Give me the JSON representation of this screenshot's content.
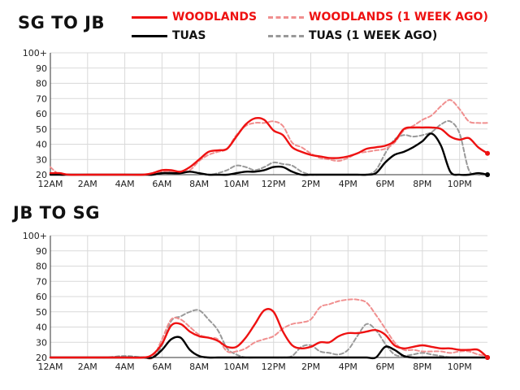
{
  "legend": {
    "woodlands": "WOODLANDS",
    "woodlands_ago": "WOODLANDS (1 WEEK AGO)",
    "tuas": "TUAS",
    "tuas_ago": "TUAS (1 WEEK AGO)"
  },
  "colors": {
    "woodlands": "#ee1111",
    "woodlands_ago": "#f08f8f",
    "tuas": "#000000",
    "tuas_ago": "#999999",
    "grid": "#d9d9d9"
  },
  "chart_data": [
    {
      "type": "line",
      "title": "SG TO JB",
      "x_ticks": [
        "12AM",
        "2AM",
        "4AM",
        "6AM",
        "8AM",
        "10AM",
        "12PM",
        "2PM",
        "4PM",
        "6PM",
        "8PM",
        "10PM"
      ],
      "y_ticks": [
        "20",
        "30",
        "40",
        "50",
        "60",
        "70",
        "80",
        "90",
        "100+"
      ],
      "ylim": [
        20,
        100
      ],
      "xlim": [
        0,
        23.5
      ],
      "grid": true,
      "series": [
        {
          "name": "WOODLANDS",
          "key": "woodlands",
          "dashed": false,
          "x": [
            0,
            0.5,
            1,
            2,
            3,
            4,
            5,
            5.5,
            6,
            6.5,
            7,
            7.5,
            8,
            8.5,
            9,
            9.5,
            10,
            10.5,
            11,
            11.5,
            12,
            12.5,
            13,
            13.5,
            14,
            14.5,
            15,
            15.5,
            16,
            16.5,
            17,
            17.5,
            18,
            18.5,
            19,
            19.5,
            20,
            20.5,
            21,
            21.5,
            22,
            22.5,
            23,
            23.5
          ],
          "y": [
            21,
            21,
            20,
            20,
            20,
            20,
            20,
            21,
            23,
            23,
            22,
            25,
            30,
            35,
            36,
            37,
            45,
            53,
            57,
            56,
            49,
            46,
            38,
            35,
            33,
            32,
            31,
            31,
            32,
            34,
            37,
            38,
            39,
            42,
            50,
            51,
            51,
            51,
            50,
            45,
            43,
            44,
            38,
            34
          ]
        },
        {
          "name": "WOODLANDS (1 WEEK AGO)",
          "key": "woodlands_ago",
          "dashed": true,
          "x": [
            0,
            0.5,
            1,
            2,
            3,
            4,
            5,
            5.5,
            6,
            6.5,
            7,
            7.5,
            8,
            8.5,
            9,
            9.5,
            10,
            10.5,
            11,
            11.5,
            12,
            12.5,
            13,
            13.5,
            14,
            14.5,
            15,
            15.5,
            16,
            16.5,
            17,
            17.5,
            18,
            18.5,
            19,
            19.5,
            20,
            20.5,
            21,
            21.5,
            22,
            22.5,
            23,
            23.5
          ],
          "y": [
            25,
            20,
            20,
            20,
            20,
            20,
            20,
            20,
            22,
            22,
            22,
            23,
            29,
            33,
            35,
            37,
            46,
            52,
            54,
            54,
            55,
            52,
            41,
            38,
            34,
            31,
            30,
            29,
            31,
            34,
            35,
            36,
            37,
            41,
            49,
            52,
            56,
            59,
            65,
            69,
            63,
            55,
            54,
            54
          ]
        },
        {
          "name": "TUAS",
          "key": "tuas",
          "dashed": false,
          "x": [
            0,
            0.5,
            1,
            2,
            3,
            4,
            5,
            5.5,
            6,
            6.5,
            7,
            7.5,
            8,
            8.5,
            9,
            9.5,
            10,
            10.5,
            11,
            11.5,
            12,
            12.5,
            13,
            13.5,
            14,
            14.5,
            15,
            15.5,
            16,
            16.5,
            17,
            17.5,
            18,
            18.5,
            19,
            19.5,
            20,
            20.5,
            21,
            21.5,
            22,
            22.5,
            23,
            23.5
          ],
          "y": [
            20,
            20,
            20,
            20,
            20,
            20,
            20,
            20,
            21,
            21,
            21,
            22,
            21,
            20,
            20,
            20,
            21,
            22,
            22,
            23,
            25,
            25,
            22,
            20,
            20,
            20,
            20,
            20,
            20,
            20,
            20,
            21,
            28,
            33,
            35,
            38,
            42,
            47,
            39,
            22,
            20,
            20,
            21,
            20
          ]
        },
        {
          "name": "TUAS (1 WEEK AGO)",
          "key": "tuas_ago",
          "dashed": true,
          "x": [
            0,
            0.5,
            1,
            2,
            3,
            4,
            5,
            5.5,
            6,
            6.5,
            7,
            7.5,
            8,
            8.5,
            9,
            9.5,
            10,
            10.5,
            11,
            11.5,
            12,
            12.5,
            13,
            13.5,
            14,
            14.5,
            15,
            15.5,
            16,
            16.5,
            17,
            17.5,
            18,
            18.5,
            19,
            19.5,
            20,
            20.5,
            21,
            21.5,
            22,
            22.5,
            23,
            23.5
          ],
          "y": [
            20,
            20,
            20,
            20,
            20,
            20,
            20,
            20,
            21,
            22,
            22,
            22,
            21,
            20,
            21,
            23,
            26,
            25,
            23,
            25,
            28,
            27,
            26,
            22,
            20,
            20,
            20,
            20,
            20,
            20,
            20,
            23,
            34,
            43,
            46,
            45,
            46,
            48,
            53,
            55,
            47,
            23,
            20,
            20
          ]
        }
      ]
    },
    {
      "type": "line",
      "title": "JB TO SG",
      "x_ticks": [
        "12AM",
        "2AM",
        "4AM",
        "6AM",
        "8AM",
        "10AM",
        "12PM",
        "2PM",
        "4PM",
        "6PM",
        "8PM",
        "10PM"
      ],
      "y_ticks": [
        "20",
        "30",
        "40",
        "50",
        "60",
        "70",
        "80",
        "90",
        "100+"
      ],
      "ylim": [
        20,
        100
      ],
      "xlim": [
        0,
        23.5
      ],
      "grid": true,
      "series": [
        {
          "name": "WOODLANDS",
          "key": "woodlands",
          "dashed": false,
          "x": [
            0,
            0.5,
            1,
            2,
            3,
            4,
            5,
            5.5,
            6,
            6.5,
            7,
            7.5,
            8,
            8.5,
            9,
            9.5,
            10,
            10.5,
            11,
            11.5,
            12,
            12.5,
            13,
            13.5,
            14,
            14.5,
            15,
            15.5,
            16,
            16.5,
            17,
            17.5,
            18,
            18.5,
            19,
            19.5,
            20,
            20.5,
            21,
            21.5,
            22,
            22.5,
            23,
            23.5
          ],
          "y": [
            20,
            20,
            20,
            20,
            20,
            20,
            20,
            22,
            29,
            41,
            42,
            37,
            34,
            33,
            31,
            27,
            27,
            33,
            42,
            51,
            50,
            37,
            28,
            26,
            27,
            30,
            30,
            34,
            36,
            36,
            37,
            38,
            35,
            28,
            26,
            27,
            28,
            27,
            26,
            26,
            25,
            25,
            25,
            20
          ]
        },
        {
          "name": "WOODLANDS (1 WEEK AGO)",
          "key": "woodlands_ago",
          "dashed": true,
          "x": [
            0,
            0.5,
            1,
            2,
            3,
            4,
            5,
            5.5,
            6,
            6.5,
            7,
            7.5,
            8,
            8.5,
            9,
            9.5,
            10,
            10.5,
            11,
            11.5,
            12,
            12.5,
            13,
            13.5,
            14,
            14.5,
            15,
            15.5,
            16,
            16.5,
            17,
            17.5,
            18,
            18.5,
            19,
            19.5,
            20,
            20.5,
            21,
            21.5,
            22,
            22.5,
            23,
            23.5
          ],
          "y": [
            20,
            20,
            20,
            20,
            20,
            20,
            20,
            20,
            32,
            45,
            45,
            40,
            35,
            33,
            32,
            24,
            24,
            26,
            30,
            32,
            34,
            39,
            42,
            43,
            45,
            53,
            55,
            57,
            58,
            58,
            56,
            48,
            39,
            30,
            25,
            25,
            24,
            24,
            24,
            23,
            24,
            24,
            22,
            21
          ]
        },
        {
          "name": "TUAS",
          "key": "tuas",
          "dashed": false,
          "x": [
            0,
            0.5,
            1,
            2,
            3,
            4,
            5,
            5.5,
            6,
            6.5,
            7,
            7.5,
            8,
            8.5,
            9,
            9.5,
            10,
            10.5,
            11,
            11.5,
            12,
            12.5,
            13,
            13.5,
            14,
            14.5,
            15,
            15.5,
            16,
            16.5,
            17,
            17.5,
            18,
            18.5,
            19,
            19.5,
            20,
            20.5,
            21,
            21.5,
            22,
            22.5,
            23,
            23.5
          ],
          "y": [
            20,
            20,
            20,
            20,
            20,
            20,
            20,
            20,
            25,
            32,
            33,
            25,
            21,
            20,
            20,
            20,
            20,
            20,
            20,
            20,
            20,
            20,
            20,
            20,
            20,
            20,
            20,
            20,
            20,
            20,
            20,
            20,
            27,
            25,
            21,
            20,
            20,
            20,
            20,
            20,
            20,
            20,
            20,
            20
          ]
        },
        {
          "name": "TUAS (1 WEEK AGO)",
          "key": "tuas_ago",
          "dashed": true,
          "x": [
            0,
            0.5,
            1,
            2,
            3,
            4,
            5,
            5.5,
            6,
            6.5,
            7,
            7.5,
            8,
            8.5,
            9,
            9.5,
            10,
            10.5,
            11,
            11.5,
            12,
            12.5,
            13,
            13.5,
            14,
            14.5,
            15,
            15.5,
            16,
            16.5,
            17,
            17.5,
            18,
            18.5,
            19,
            19.5,
            20,
            20.5,
            21,
            21.5,
            22,
            22.5,
            23,
            23.5
          ],
          "y": [
            20,
            20,
            20,
            20,
            20,
            21,
            20,
            20,
            28,
            44,
            47,
            50,
            51,
            45,
            38,
            26,
            22,
            20,
            20,
            20,
            20,
            20,
            21,
            27,
            28,
            24,
            23,
            22,
            25,
            34,
            42,
            38,
            29,
            22,
            21,
            22,
            23,
            22,
            21,
            20,
            20,
            20,
            20,
            20
          ]
        }
      ]
    }
  ]
}
